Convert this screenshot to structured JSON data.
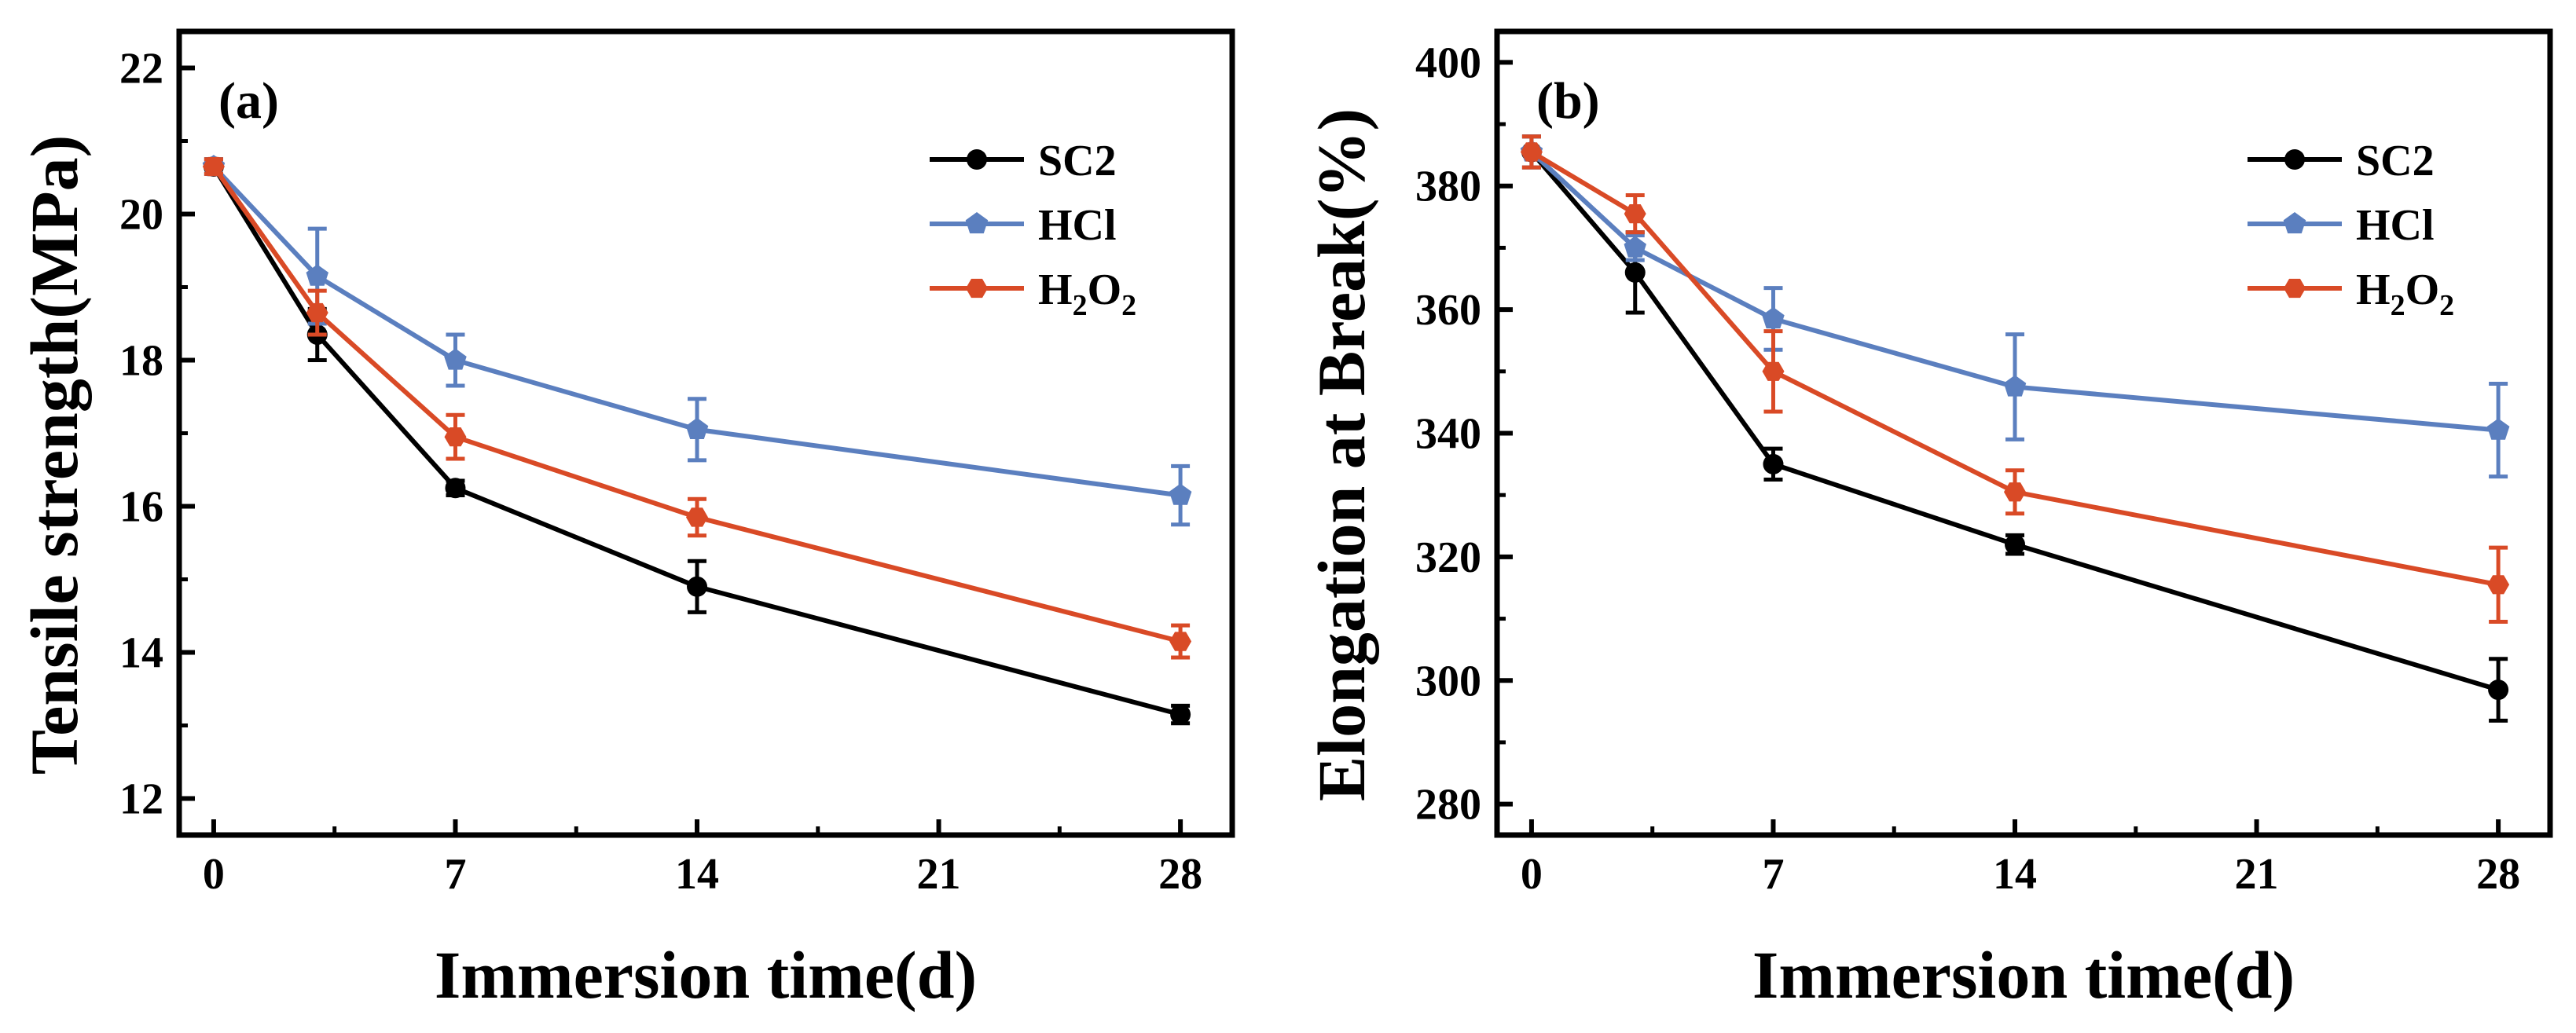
{
  "chart_data": [
    {
      "type": "line",
      "panel_label": "(a)",
      "title": "",
      "xlabel": "Immersion time(d)",
      "ylabel": "Tensile strength(MPa)",
      "xlim": [
        -1,
        29.5
      ],
      "ylim": [
        11.5,
        22.5
      ],
      "x_ticks": [
        0,
        7,
        14,
        21,
        28
      ],
      "y_ticks": [
        12,
        14,
        16,
        18,
        20,
        22
      ],
      "legend_position": "top-right",
      "x": [
        0,
        3,
        7,
        14,
        28
      ],
      "series": [
        {
          "name": "SC2",
          "name_main": "SC2",
          "name_sub1": "",
          "name_mid": "",
          "name_sub2": "",
          "color": "#000000",
          "marker": "circle",
          "values": [
            20.65,
            18.35,
            16.25,
            14.9,
            13.15
          ],
          "errors": [
            0.1,
            0.35,
            0.1,
            0.35,
            0.12
          ]
        },
        {
          "name": "HCl",
          "name_main": "HCl",
          "name_sub1": "",
          "name_mid": "",
          "name_sub2": "",
          "color": "#5b7fbf",
          "marker": "pentagon",
          "values": [
            20.65,
            19.15,
            18.0,
            17.05,
            16.15
          ],
          "errors": [
            0.1,
            0.65,
            0.35,
            0.42,
            0.4
          ]
        },
        {
          "name": "H2O2",
          "name_main": "H",
          "name_sub1": "2",
          "name_mid": "O",
          "name_sub2": "2",
          "color": "#d94a26",
          "marker": "hexagon",
          "values": [
            20.65,
            18.65,
            16.95,
            15.85,
            14.15
          ],
          "errors": [
            0.1,
            0.3,
            0.3,
            0.25,
            0.22
          ]
        }
      ]
    },
    {
      "type": "line",
      "panel_label": "(b)",
      "title": "",
      "xlabel": "Immersion time(d)",
      "ylabel": "Elongation at Break(%)",
      "xlim": [
        -1,
        29.5
      ],
      "ylim": [
        275,
        405
      ],
      "x_ticks": [
        0,
        7,
        14,
        21,
        28
      ],
      "y_ticks": [
        280,
        300,
        320,
        340,
        360,
        380,
        400
      ],
      "legend_position": "top-right",
      "x": [
        0,
        3,
        7,
        14,
        28
      ],
      "series": [
        {
          "name": "SC2",
          "name_main": "SC2",
          "name_sub1": "",
          "name_mid": "",
          "name_sub2": "",
          "color": "#000000",
          "marker": "circle",
          "values": [
            385.5,
            366,
            335,
            322,
            298.5
          ],
          "errors": [
            2.5,
            6.5,
            2.5,
            1.5,
            5
          ]
        },
        {
          "name": "HCl",
          "name_main": "HCl",
          "name_sub1": "",
          "name_mid": "",
          "name_sub2": "",
          "color": "#5b7fbf",
          "marker": "pentagon",
          "values": [
            385.5,
            370,
            358.5,
            347.5,
            340.5
          ],
          "errors": [
            2.5,
            2,
            5,
            8.5,
            7.5
          ]
        },
        {
          "name": "H2O2",
          "name_main": "H",
          "name_sub1": "2",
          "name_mid": "O",
          "name_sub2": "2",
          "color": "#d94a26",
          "marker": "hexagon",
          "values": [
            385.5,
            375.5,
            350,
            330.5,
            315.5
          ],
          "errors": [
            2.5,
            3,
            6.5,
            3.5,
            6
          ]
        }
      ]
    }
  ]
}
